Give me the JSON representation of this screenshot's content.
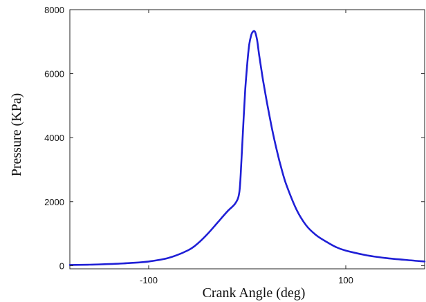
{
  "chart_data": {
    "type": "line",
    "title": "",
    "xlabel": "Crank Angle (deg)",
    "ylabel": "Pressure (KPa)",
    "xlim": [
      -180,
      180
    ],
    "ylim": [
      -100,
      8000
    ],
    "x_ticks": [
      {
        "value": -100,
        "label": "-100"
      },
      {
        "value": 100,
        "label": "100"
      }
    ],
    "y_ticks": [
      {
        "value": 0,
        "label": "0"
      },
      {
        "value": 2000,
        "label": "2000"
      },
      {
        "value": 4000,
        "label": "4000"
      },
      {
        "value": 6000,
        "label": "6000"
      },
      {
        "value": 8000,
        "label": "8000"
      }
    ],
    "grid": false,
    "legend": "none",
    "series": [
      {
        "color": "#1f1fd6",
        "x": [
          -180,
          -160,
          -140,
          -120,
          -100,
          -80,
          -60,
          -50,
          -40,
          -30,
          -20,
          -12,
          -8,
          -6,
          -4,
          -2,
          0,
          2,
          4,
          6,
          8,
          10,
          12,
          14,
          16,
          20,
          25,
          30,
          35,
          40,
          50,
          60,
          70,
          80,
          90,
          100,
          120,
          140,
          160,
          180
        ],
        "y": [
          20,
          30,
          50,
          80,
          130,
          240,
          480,
          700,
          1000,
          1350,
          1700,
          1950,
          2300,
          3200,
          4400,
          5500,
          6300,
          6900,
          7200,
          7320,
          7300,
          7050,
          6600,
          6200,
          5800,
          5100,
          4300,
          3600,
          3000,
          2500,
          1750,
          1250,
          950,
          750,
          580,
          470,
          330,
          240,
          180,
          130
        ]
      }
    ]
  }
}
